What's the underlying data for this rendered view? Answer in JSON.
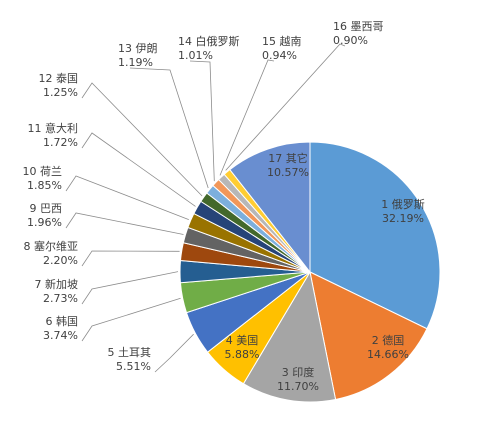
{
  "chart_data": {
    "type": "pie",
    "start_angle_deg": 0,
    "direction": "clockwise",
    "slices": [
      {
        "label": "1 俄罗斯",
        "value": 32.19,
        "value_label": "32.19%",
        "color": "#5B9BD5"
      },
      {
        "label": "2 德国",
        "value": 14.66,
        "value_label": "14.66%",
        "color": "#ED7D31"
      },
      {
        "label": "3 印度",
        "value": 11.7,
        "value_label": "11.70%",
        "color": "#A5A5A5"
      },
      {
        "label": "4 美国",
        "value": 5.88,
        "value_label": "5.88%",
        "color": "#FFC000"
      },
      {
        "label": "5 土耳其",
        "value": 5.51,
        "value_label": "5.51%",
        "color": "#4472C4"
      },
      {
        "label": "6 韩国",
        "value": 3.74,
        "value_label": "3.74%",
        "color": "#70AD47"
      },
      {
        "label": "7 新加坡",
        "value": 2.73,
        "value_label": "2.73%",
        "color": "#255E91"
      },
      {
        "label": "8 塞尔维亚",
        "value": 2.2,
        "value_label": "2.20%",
        "color": "#9E480E"
      },
      {
        "label": "9 巴西",
        "value": 1.96,
        "value_label": "1.96%",
        "color": "#636363"
      },
      {
        "label": "10 荷兰",
        "value": 1.85,
        "value_label": "1.85%",
        "color": "#997300"
      },
      {
        "label": "11 意大利",
        "value": 1.72,
        "value_label": "1.72%",
        "color": "#264478"
      },
      {
        "label": "12 泰国",
        "value": 1.25,
        "value_label": "1.25%",
        "color": "#43682B"
      },
      {
        "label": "13 伊朗",
        "value": 1.19,
        "value_label": "1.19%",
        "color": "#7CAFDD"
      },
      {
        "label": "14 白俄罗斯",
        "value": 1.01,
        "value_label": "1.01%",
        "color": "#F1975A"
      },
      {
        "label": "15 越南",
        "value": 0.94,
        "value_label": "0.94%",
        "color": "#B7B7B7"
      },
      {
        "label": "16 墨西哥",
        "value": 0.9,
        "value_label": "0.90%",
        "color": "#FFCD33"
      },
      {
        "label": "17 其它",
        "value": 10.57,
        "value_label": "10.57%",
        "color": "#698ED0"
      }
    ]
  }
}
